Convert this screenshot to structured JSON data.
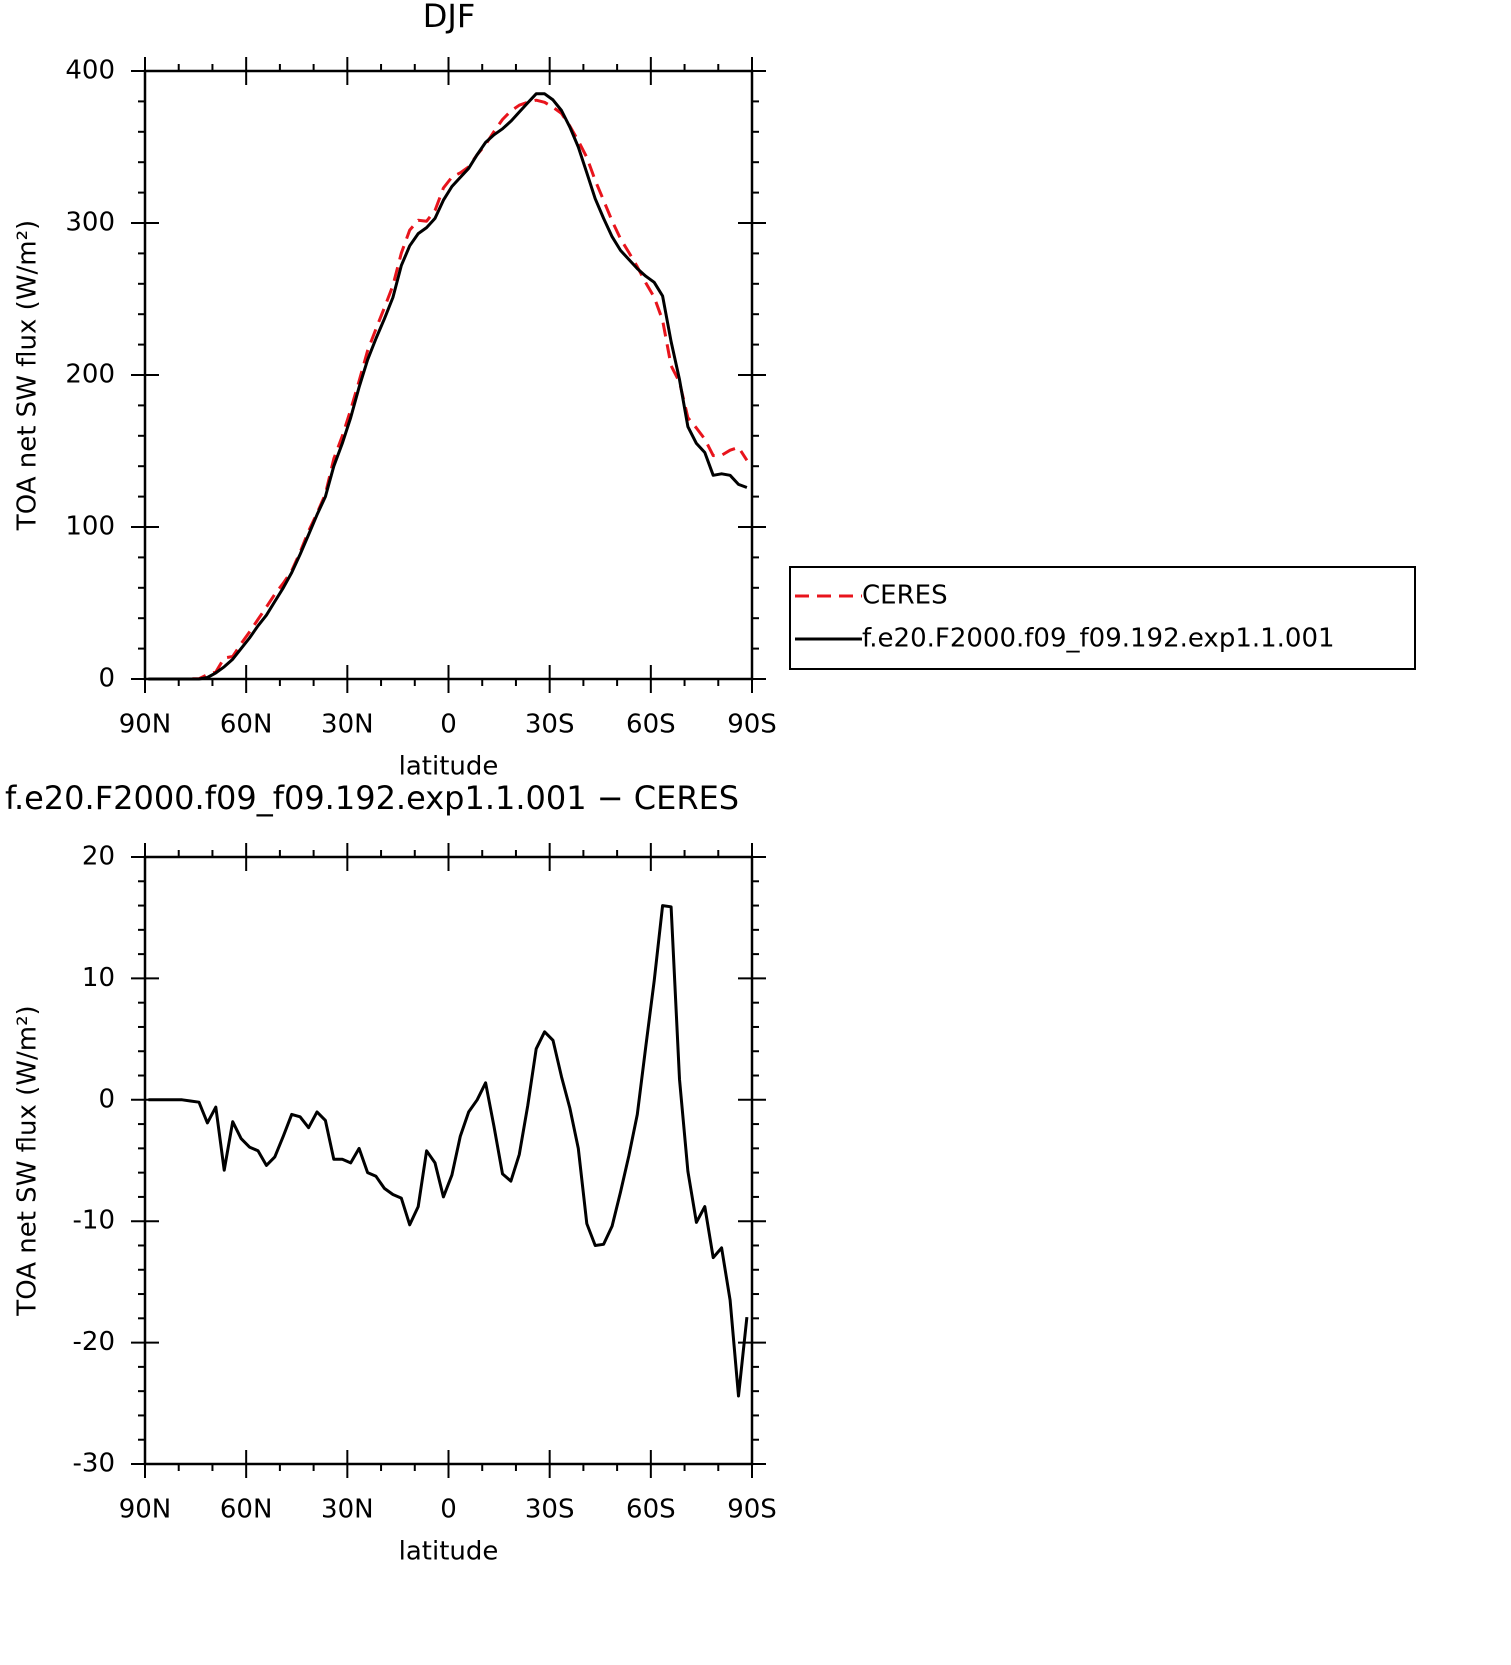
{
  "chart_data": [
    {
      "type": "line",
      "title": "DJF",
      "xlabel": "latitude",
      "ylabel": "TOA net SW flux (W/m²)",
      "x": [
        89,
        86.5,
        84,
        81.5,
        79,
        76.5,
        74,
        71.5,
        69,
        66.5,
        64,
        61.5,
        59,
        56.5,
        54,
        51.5,
        49,
        46.5,
        44,
        41.5,
        39,
        36.5,
        34,
        31.5,
        29,
        26.5,
        24,
        21.5,
        19,
        16.5,
        14,
        11.5,
        9,
        6.5,
        4,
        1.5,
        -1,
        -3.5,
        -6,
        -8.5,
        -11,
        -13.5,
        -16,
        -18.5,
        -21,
        -23.5,
        -26,
        -28.5,
        -31,
        -33.5,
        -36,
        -38.5,
        -41,
        -43.5,
        -46,
        -48.5,
        -51,
        -53.5,
        -56,
        -58.5,
        -61,
        -63.5,
        -66,
        -68.5,
        -71,
        -73.5,
        -76,
        -78.5,
        -81,
        -83.5,
        -86,
        -88.5
      ],
      "series": [
        {
          "name": "CERES",
          "color": "#e8141c",
          "dash": true,
          "values": [
            0,
            0,
            0,
            0,
            0,
            0.1,
            0.2,
            2.9,
            4.6,
            13.8,
            14.8,
            23.2,
            30.9,
            39.2,
            47.4,
            55.7,
            63,
            71.2,
            83.4,
            97.3,
            109,
            121.7,
            144.9,
            159.9,
            177.2,
            196,
            216,
            230.3,
            244.3,
            258.8,
            280.1,
            295.3,
            301.8,
            301.2,
            308.2,
            323,
            330.2,
            333,
            337,
            345,
            351.6,
            360.2,
            368.1,
            373.7,
            377.5,
            379.5,
            380.8,
            379.4,
            376.1,
            372.1,
            363.7,
            354,
            343.2,
            328,
            314.9,
            301.4,
            289.6,
            280.6,
            271.2,
            260.6,
            251.2,
            236,
            206.1,
            195.3,
            171.9,
            165.1,
            157.8,
            147,
            147.2,
            150.5,
            152.4,
            143.9
          ]
        },
        {
          "name": "f.e20.F2000.f09_f09.192.exp1.1.001",
          "color": "#000000",
          "dash": false,
          "values": [
            0,
            0,
            0,
            0,
            0,
            0,
            0,
            1,
            4,
            8,
            13,
            20,
            27,
            35,
            42,
            51,
            60,
            70,
            82,
            95,
            108,
            120,
            140,
            155,
            172,
            192,
            210,
            224,
            237,
            251,
            272,
            285,
            293,
            297,
            303,
            315,
            324,
            330,
            336,
            345,
            353,
            358,
            362,
            367,
            373,
            379,
            385,
            385,
            381,
            374,
            363,
            350,
            333,
            316,
            303,
            291,
            282,
            276,
            270,
            265,
            261,
            252,
            222,
            197,
            166,
            155,
            149,
            134,
            135,
            134,
            128,
            126
          ]
        }
      ],
      "xlim": [
        90,
        -90
      ],
      "xticks": [
        {
          "value": 90,
          "label": "90N"
        },
        {
          "value": 60,
          "label": "60N"
        },
        {
          "value": 30,
          "label": "30N"
        },
        0,
        {
          "value": -30,
          "label": "30S"
        },
        {
          "value": -60,
          "label": "60S"
        },
        {
          "value": -90,
          "label": "90S"
        }
      ],
      "ylim": [
        0,
        400
      ],
      "yticks": [
        0,
        100,
        200,
        300,
        400
      ],
      "legend": "outside-right"
    },
    {
      "type": "line",
      "title": "f.e20.F2000.f09_f09.192.exp1.1.001 − CERES",
      "xlabel": "latitude",
      "ylabel": "TOA net SW flux (W/m²)",
      "x": [
        89,
        86.5,
        84,
        81.5,
        79,
        76.5,
        74,
        71.5,
        69,
        66.5,
        64,
        61.5,
        59,
        56.5,
        54,
        51.5,
        49,
        46.5,
        44,
        41.5,
        39,
        36.5,
        34,
        31.5,
        29,
        26.5,
        24,
        21.5,
        19,
        16.5,
        14,
        11.5,
        9,
        6.5,
        4,
        1.5,
        -1,
        -3.5,
        -6,
        -8.5,
        -11,
        -13.5,
        -16,
        -18.5,
        -21,
        -23.5,
        -26,
        -28.5,
        -31,
        -33.5,
        -36,
        -38.5,
        -41,
        -43.5,
        -46,
        -48.5,
        -51,
        -53.5,
        -56,
        -58.5,
        -61,
        -63.5,
        -66,
        -68.5,
        -71,
        -73.5,
        -76,
        -78.5,
        -81,
        -83.5,
        -86,
        -88.5
      ],
      "series": [
        {
          "color": "#000000",
          "dash": false,
          "values": [
            0,
            0,
            0,
            0,
            0,
            -0.1,
            -0.2,
            -1.9,
            -0.6,
            -5.8,
            -1.8,
            -3.2,
            -3.9,
            -4.2,
            -5.4,
            -4.7,
            -3,
            -1.2,
            -1.4,
            -2.3,
            -1,
            -1.7,
            -4.9,
            -4.9,
            -5.2,
            -4,
            -6,
            -6.3,
            -7.3,
            -7.8,
            -8.1,
            -10.3,
            -8.8,
            -4.2,
            -5.2,
            -8,
            -6.2,
            -3,
            -1,
            0,
            1.4,
            -2.2,
            -6.1,
            -6.7,
            -4.5,
            -0.5,
            4.2,
            5.6,
            4.9,
            1.9,
            -0.7,
            -4,
            -10.2,
            -12,
            -11.9,
            -10.4,
            -7.6,
            -4.6,
            -1.2,
            4.4,
            9.8,
            16,
            15.9,
            1.7,
            -5.9,
            -10.1,
            -8.8,
            -13,
            -12.2,
            -16.5,
            -24.4,
            -17.9
          ]
        }
      ],
      "xlim": [
        90,
        -90
      ],
      "xticks": [
        {
          "value": 90,
          "label": "90N"
        },
        {
          "value": 60,
          "label": "60N"
        },
        {
          "value": 30,
          "label": "30N"
        },
        0,
        {
          "value": -30,
          "label": "30S"
        },
        {
          "value": -60,
          "label": "60S"
        },
        {
          "value": -90,
          "label": "90S"
        }
      ],
      "ylim": [
        -30,
        20
      ],
      "yticks": [
        -30,
        -20,
        -10,
        0,
        10,
        20
      ]
    }
  ]
}
